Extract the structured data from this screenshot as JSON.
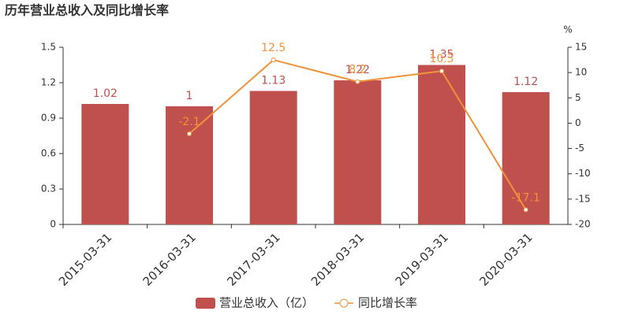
{
  "chart_data": {
    "type": "bar",
    "title": "历年营业总收入及同比增长率",
    "y2_label": "%",
    "categories": [
      "2015-03-31",
      "2016-03-31",
      "2017-03-31",
      "2018-03-31",
      "2019-03-31",
      "2020-03-31"
    ],
    "series": [
      {
        "name": "营业总收入（亿）",
        "color": "#c0504d",
        "values": [
          1.02,
          1,
          1.13,
          1.22,
          1.35,
          1.12
        ]
      },
      {
        "name": "同比增长率",
        "color": "#f0923a",
        "type": "line",
        "axis": "y2",
        "values": [
          null,
          -2.1,
          12.5,
          8.2,
          10.3,
          -17.1
        ]
      }
    ],
    "ylim": [
      0,
      1.5
    ],
    "yticks": [
      0,
      0.3,
      0.6,
      0.9,
      1.2,
      1.5
    ],
    "y2lim": [
      -20,
      15
    ],
    "y2ticks": [
      -20,
      -15,
      -10,
      -5,
      0,
      5,
      10,
      15
    ],
    "grid": false
  }
}
